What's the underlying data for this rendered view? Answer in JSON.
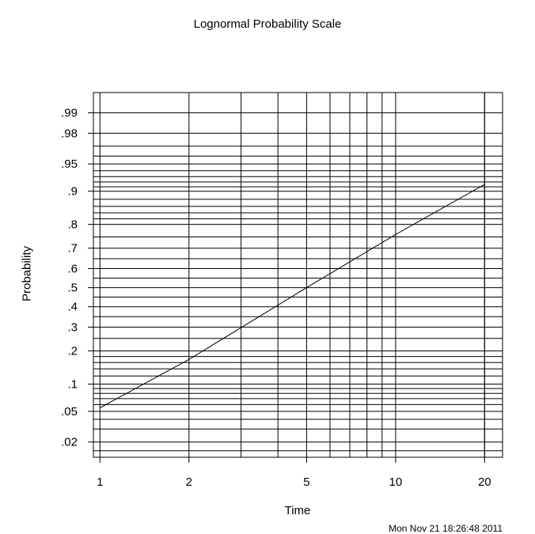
{
  "footer": {
    "timestamp": "Mon Nov 21 18:26:48 2011"
  },
  "chart_data": {
    "type": "line",
    "title": "Lognormal Probability Scale",
    "xlabel": "Time",
    "ylabel": "Probability",
    "x_scale": "log",
    "y_scale": "normal-probability",
    "xlim": [
      0.95,
      23
    ],
    "ylim": [
      0.012,
      0.9953
    ],
    "x_ticks": [
      1,
      2,
      5,
      10,
      20
    ],
    "x_tick_labels": [
      "1",
      "2",
      "5",
      "10",
      "20"
    ],
    "y_ticks": [
      0.02,
      0.05,
      0.1,
      0.2,
      0.3,
      0.4,
      0.5,
      0.6,
      0.7,
      0.8,
      0.9,
      0.95,
      0.98,
      0.99
    ],
    "y_tick_labels": [
      ".02",
      ".05",
      ".1",
      ".2",
      ".3",
      ".4",
      ".5",
      ".6",
      ".7",
      ".8",
      ".9",
      ".95",
      ".98",
      ".99"
    ],
    "grid": true,
    "line_color": "#000000",
    "series": [
      {
        "x": [
          1,
          2,
          5,
          10,
          20
        ],
        "y": [
          0.055,
          0.17,
          0.5,
          0.76,
          0.915
        ]
      }
    ]
  }
}
